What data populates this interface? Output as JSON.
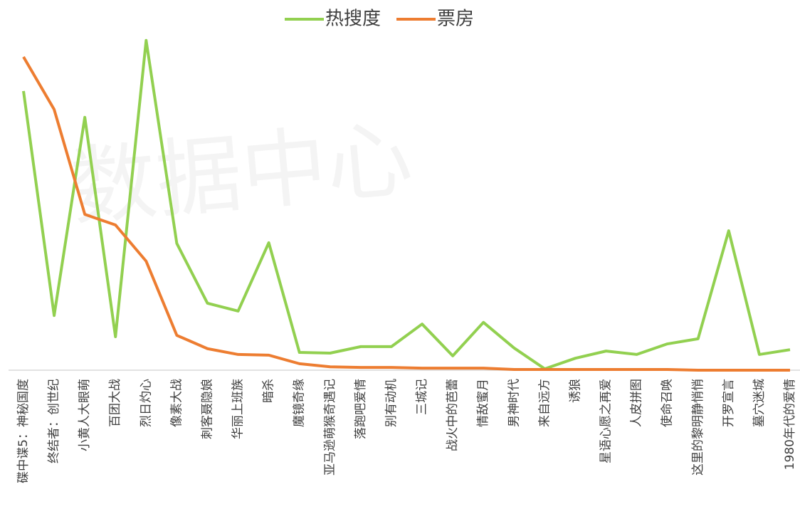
{
  "chart_data": {
    "type": "line",
    "watermark": "数据中心",
    "categories": [
      "碟中谍5：神秘国度",
      "终结者：创世纪",
      "小黄人大眼萌",
      "百团大战",
      "烈日灼心",
      "像素大战",
      "刺客聂隐娘",
      "华丽上班族",
      "暗杀",
      "魔镜奇缘",
      "亚马逊萌猴奇遇记",
      "落跑吧爱情",
      "别有动机",
      "三城记",
      "战火中的芭蕾",
      "情敌蜜月",
      "男神时代",
      "来自远方",
      "诱狼",
      "星语心愿之再爱",
      "人皮拼图",
      "使命召唤",
      "这里的黎明静悄悄",
      "开罗宣言",
      "墓穴迷城",
      "1980年代的爱情"
    ],
    "series": [
      {
        "name": "热搜度",
        "color": "#92d050",
        "values": [
          81.7,
          16.0,
          74.0,
          9.8,
          96.5,
          37.1,
          19.6,
          17.3,
          37.3,
          5.2,
          5.0,
          6.9,
          6.9,
          13.5,
          4.2,
          14.0,
          6.5,
          0.4,
          3.5,
          5.6,
          4.6,
          7.7,
          9.2,
          40.8,
          4.6,
          6.0
        ]
      },
      {
        "name": "票房",
        "color": "#ed7d31",
        "values": [
          91.7,
          76.3,
          45.6,
          42.5,
          31.9,
          10.2,
          6.3,
          4.6,
          4.4,
          1.9,
          1.0,
          0.8,
          0.8,
          0.6,
          0.6,
          0.6,
          0.2,
          0.2,
          0.2,
          0.2,
          0.2,
          0.2,
          0,
          0,
          0,
          0
        ]
      }
    ],
    "ylim": [
      0,
      100
    ],
    "legend": "top"
  }
}
